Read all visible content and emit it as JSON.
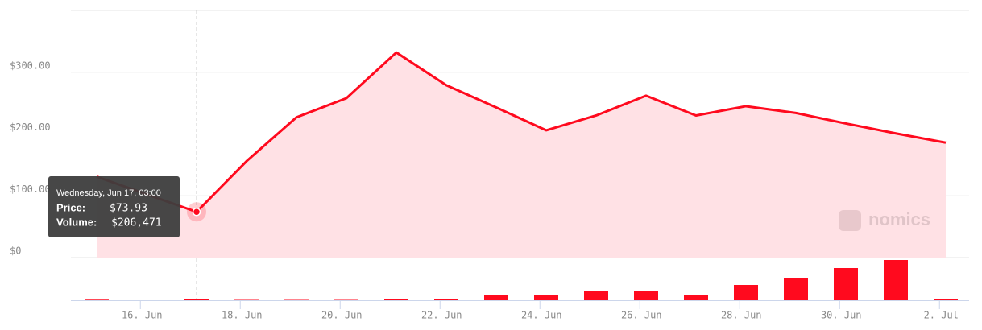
{
  "chart_data": {
    "type": "line",
    "x": [
      "Jun 15, 03:00",
      "Jun 17, 03:00",
      "Jun 18, 03:00",
      "Jun 19, 03:00",
      "Jun 20, 03:00",
      "Jun 21, 03:00",
      "Jun 22, 03:00",
      "Jun 23, 03:00",
      "Jun 24, 03:00",
      "Jun 25, 03:00",
      "Jun 26, 03:00",
      "Jun 27, 03:00",
      "Jun 28, 03:00",
      "Jun 29, 03:00",
      "Jun 30, 03:00",
      "Jul 1, 03:00",
      "Jul 2, 03:00"
    ],
    "series": [
      {
        "name": "Price",
        "color": "#ff0a1e",
        "values": [
          131,
          73.93,
          156,
          227,
          258,
          332,
          279,
          243,
          206,
          230,
          262,
          230,
          245,
          234,
          217,
          201,
          186
        ]
      },
      {
        "name": "Volume",
        "color": "#ff0a1e",
        "axis": "y2",
        "values": [
          150000,
          206471,
          100000,
          100000,
          100000,
          400000,
          200000,
          1200000,
          1200000,
          2400000,
          2200000,
          1200000,
          3800000,
          5400000,
          8000000,
          10000000,
          400000
        ]
      }
    ],
    "ylim": [
      0,
      400
    ],
    "yticks": [
      {
        "value": 0,
        "label": "$0"
      },
      {
        "value": 100,
        "label": "$100.00"
      },
      {
        "value": 200,
        "label": "$200.00"
      },
      {
        "value": 300,
        "label": "$300.00"
      }
    ],
    "y2lim": [
      0,
      12000000
    ],
    "xticks": [
      {
        "value": "Jun 16, 00:00",
        "label": "16. Jun"
      },
      {
        "value": "Jun 18, 00:00",
        "label": "18. Jun"
      },
      {
        "value": "Jun 20, 00:00",
        "label": "20. Jun"
      },
      {
        "value": "Jun 22, 00:00",
        "label": "22. Jun"
      },
      {
        "value": "Jun 24, 00:00",
        "label": "24. Jun"
      },
      {
        "value": "Jun 26, 00:00",
        "label": "26. Jun"
      },
      {
        "value": "Jun 28, 00:00",
        "label": "28. Jun"
      },
      {
        "value": "Jun 30, 00:00",
        "label": "30. Jun"
      },
      {
        "value": "Jul 2, 00:00",
        "label": "2. Jul"
      }
    ],
    "grid": true,
    "tooltip": {
      "title": "Wednesday, Jun 17, 03:00",
      "price_label": "Price:",
      "price": "$73.93",
      "volume_label": "Volume:",
      "volume": "$206,471"
    },
    "watermark": "nomics"
  }
}
